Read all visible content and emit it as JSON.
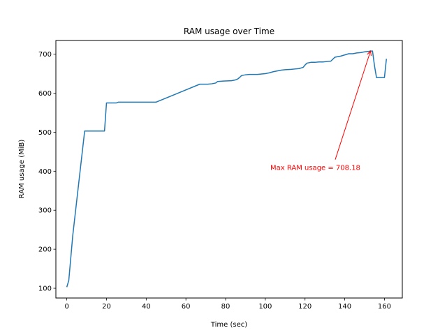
{
  "chart_data": {
    "type": "line",
    "title": "RAM usage over Time",
    "xlabel": "Time (sec)",
    "ylabel": "RAM usage (MiB)",
    "xlim": [
      -5.5,
      169
    ],
    "ylim": [
      75,
      735
    ],
    "xticks": [
      0,
      20,
      40,
      60,
      80,
      100,
      120,
      140,
      160
    ],
    "yticks": [
      100,
      200,
      300,
      400,
      500,
      600,
      700
    ],
    "grid": false,
    "series_color": "#1f77b4",
    "annotation_color": "#ff0000",
    "series": [
      {
        "x": [
          0,
          1,
          3,
          9,
          19,
          20,
          25,
          26,
          45,
          67,
          71,
          73,
          75,
          76,
          79,
          83,
          85,
          86,
          87,
          88,
          90,
          92,
          96,
          100,
          102,
          104,
          106,
          108,
          110,
          113,
          115,
          117,
          119,
          120,
          121,
          123,
          125,
          127,
          129,
          131,
          133,
          135,
          138,
          142,
          144,
          146,
          148,
          150,
          152,
          153,
          154,
          155,
          156,
          157,
          158,
          160,
          161
        ],
        "y": [
          103,
          120,
          235,
          503,
          503,
          575,
          575,
          577,
          577,
          623,
          623,
          624,
          626,
          630,
          631,
          632,
          634,
          636,
          640,
          645,
          647,
          648,
          648,
          650,
          652,
          655,
          657,
          659,
          660,
          661,
          662,
          663,
          666,
          672,
          677,
          679,
          679,
          680,
          680,
          681,
          682,
          692,
          695,
          701,
          701,
          703,
          704,
          706,
          707,
          708,
          708,
          670,
          640,
          640,
          640,
          640,
          688
        ]
      }
    ],
    "annotation": {
      "text": "Max RAM usage = 708.18",
      "point": [
        153,
        708.18
      ],
      "text_pos": [
        102.5,
        410
      ]
    }
  }
}
